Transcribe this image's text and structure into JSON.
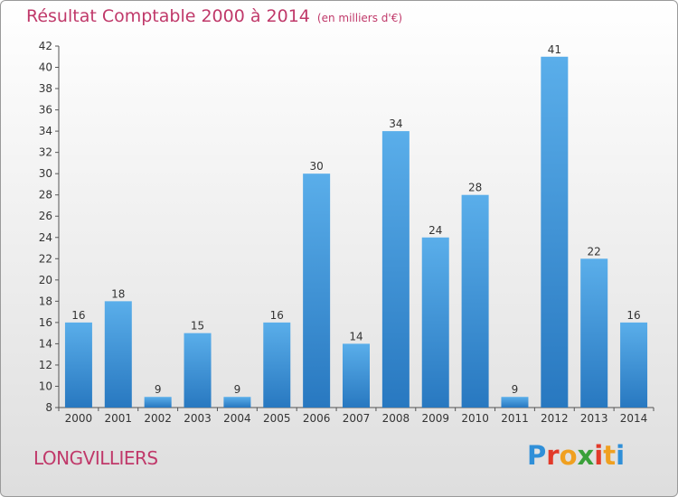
{
  "header": {
    "title": "Résultat Comptable 2000 à 2014",
    "unit": "(en milliers d'€)"
  },
  "footer": {
    "commune": "LONGVILLIERS",
    "logo_letters": [
      "P",
      "r",
      "o",
      "x",
      "i",
      "t",
      "i"
    ],
    "logo_colors": [
      "#2f8fd8",
      "#e23a2a",
      "#f0a020",
      "#3aa03a",
      "#e23a2a",
      "#f0a020",
      "#2f8fd8"
    ]
  },
  "chart_data": {
    "type": "bar",
    "title": "Résultat Comptable 2000 à 2014",
    "xlabel": "",
    "ylabel": "",
    "categories": [
      "2000",
      "2001",
      "2002",
      "2003",
      "2004",
      "2005",
      "2006",
      "2007",
      "2008",
      "2009",
      "2010",
      "2011",
      "2012",
      "2013",
      "2014"
    ],
    "values": [
      16,
      18,
      9,
      15,
      9,
      16,
      30,
      14,
      34,
      24,
      28,
      9,
      41,
      22,
      16
    ],
    "ylim": [
      8,
      42
    ],
    "yticks": [
      8,
      10,
      12,
      14,
      16,
      18,
      20,
      22,
      24,
      26,
      28,
      30,
      32,
      34,
      36,
      38,
      40,
      42
    ],
    "grid": false,
    "legend": "none",
    "bar_color": "#3a94d8"
  }
}
